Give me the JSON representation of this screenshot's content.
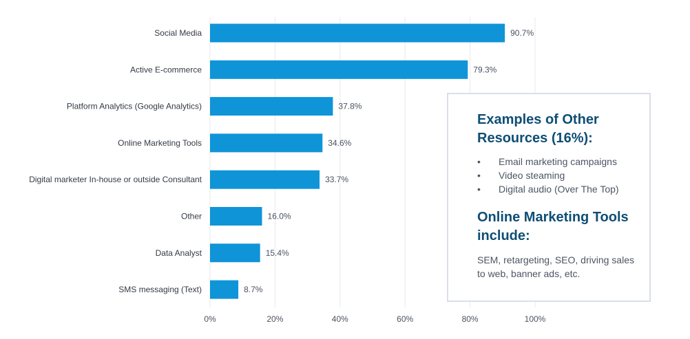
{
  "chart_data": {
    "type": "bar",
    "orientation": "horizontal",
    "categories": [
      "Social Media",
      "Active E-commerce",
      "Platform Analytics (Google Analytics)",
      "Online Marketing Tools",
      "Digital marketer In-house or outside Consultant",
      "Other",
      "Data Analyst",
      "SMS messaging (Text)"
    ],
    "values": [
      90.7,
      79.3,
      37.8,
      34.6,
      33.7,
      16.0,
      15.4,
      8.7
    ],
    "value_labels": [
      "90.7%",
      "79.3%",
      "37.8%",
      "34.6%",
      "33.7%",
      "16.0%",
      "15.4%",
      "8.7%"
    ],
    "x_ticks": [
      0,
      20,
      40,
      60,
      80,
      100
    ],
    "x_tick_labels": [
      "0%",
      "20%",
      "40%",
      "60%",
      "80%",
      "100%"
    ],
    "xlim": [
      0,
      100
    ],
    "grid": true,
    "bar_color": "#0f94d8",
    "title": "",
    "xlabel": "",
    "ylabel": ""
  },
  "callout": {
    "heading1": "Examples of Other Resources (16%):",
    "bullet_char": "•",
    "items": [
      "Email marketing campaigns",
      "Video steaming",
      "Digital audio (Over The Top)"
    ],
    "heading2": "Online Marketing Tools include:",
    "body": "SEM, retargeting, SEO, driving sales to web, banner ads, etc."
  },
  "colors": {
    "heading": "#0e4e75",
    "grid": "#e6e8ec",
    "border": "#d9dfe6"
  }
}
